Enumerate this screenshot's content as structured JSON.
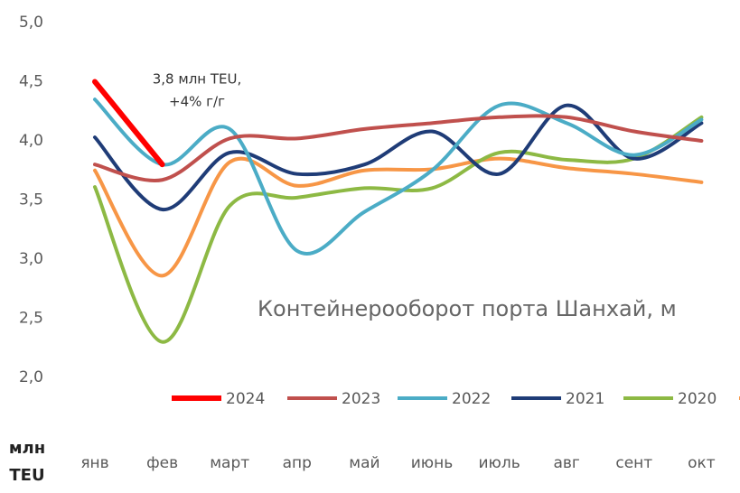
{
  "chart_data": {
    "type": "line",
    "title": "Контейнерооборот порта Шанхай, м",
    "y_label": [
      "млн",
      "TEU"
    ],
    "annotation": [
      "3,8 млн TEU,",
      "+4% г/г"
    ],
    "categories": [
      "янв",
      "фев",
      "март",
      "апр",
      "май",
      "июнь",
      "июль",
      "авг",
      "сент",
      "окт"
    ],
    "ylim": [
      2.0,
      5.0
    ],
    "yticks": [
      {
        "value": 2.0,
        "label": "2,0"
      },
      {
        "value": 2.5,
        "label": "2,5"
      },
      {
        "value": 3.0,
        "label": "3,0"
      },
      {
        "value": 3.5,
        "label": "3,5"
      },
      {
        "value": 4.0,
        "label": "4,0"
      },
      {
        "value": 4.5,
        "label": "4,5"
      },
      {
        "value": 5.0,
        "label": "5,0"
      }
    ],
    "series": [
      {
        "name": "2024",
        "color": "#ff0000",
        "values": [
          4.5,
          3.8,
          null,
          null,
          null,
          null,
          null,
          null,
          null,
          null
        ]
      },
      {
        "name": "2023",
        "color": "#c0504d",
        "values": [
          3.8,
          3.67,
          4.02,
          4.02,
          4.1,
          4.15,
          4.2,
          4.2,
          4.08,
          4.0
        ]
      },
      {
        "name": "2022",
        "color": "#4bacc6",
        "values": [
          4.35,
          3.8,
          4.1,
          3.07,
          3.4,
          3.75,
          4.3,
          4.15,
          3.88,
          4.18
        ]
      },
      {
        "name": "2021",
        "color": "#1f3c77",
        "values": [
          4.03,
          3.42,
          3.9,
          3.72,
          3.8,
          4.08,
          3.72,
          4.3,
          3.85,
          4.15
        ]
      },
      {
        "name": "2020",
        "color": "#8db944",
        "values": [
          3.61,
          2.3,
          3.45,
          3.52,
          3.6,
          3.6,
          3.9,
          3.84,
          3.85,
          4.2
        ]
      },
      {
        "color": "#f79646",
        "values": [
          3.75,
          2.86,
          3.82,
          3.62,
          3.75,
          3.76,
          3.85,
          3.77,
          3.72,
          3.65
        ]
      }
    ]
  }
}
